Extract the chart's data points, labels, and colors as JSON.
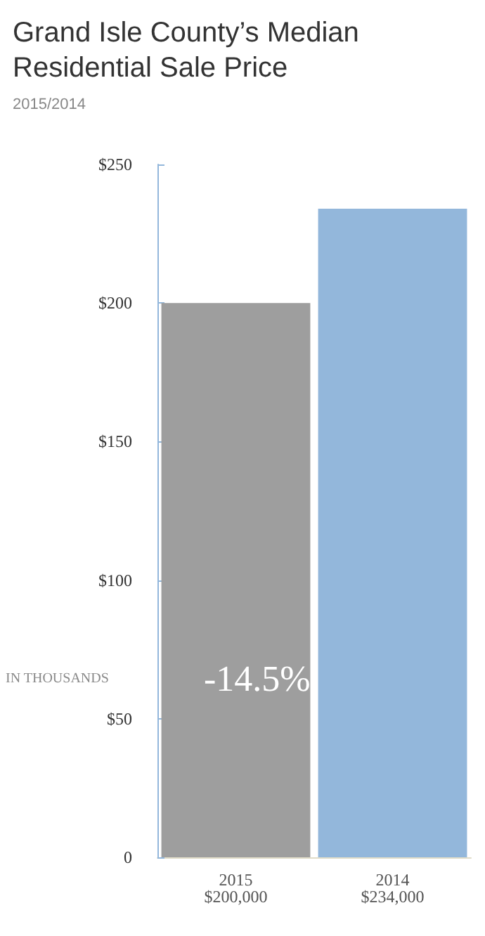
{
  "chart_data": {
    "type": "bar",
    "title": "Grand Isle County’s Median Residential Sale Price",
    "subtitle": "2015/2014",
    "ylabel": "IN THOUSANDS",
    "categories": [
      "2015",
      "2014"
    ],
    "values": [
      200,
      234
    ],
    "colors": [
      "#9e9e9e",
      "#93b7db"
    ],
    "ylim": [
      0,
      250
    ],
    "yticks": [
      {
        "value": 0,
        "label": "0"
      },
      {
        "value": 50,
        "label": "$50"
      },
      {
        "value": 100,
        "label": "$100"
      },
      {
        "value": 150,
        "label": "$150"
      },
      {
        "value": 200,
        "label": "$200"
      },
      {
        "value": 250,
        "label": "$250"
      }
    ],
    "annotations": [
      "-14.5%",
      "$200,000",
      "$234,000"
    ],
    "grid": false
  }
}
